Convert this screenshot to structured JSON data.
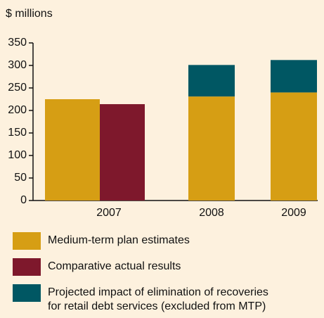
{
  "chart_data": {
    "type": "bar",
    "y_label": "$ millions",
    "categories": [
      "2007",
      "2008",
      "2009"
    ],
    "series": [
      {
        "name": "Medium-term plan estimates",
        "color": "#d69e14",
        "values": [
          225,
          231,
          240
        ]
      },
      {
        "name": "Comparative actual results",
        "color": "#7e182c",
        "values": [
          214,
          null,
          null
        ]
      },
      {
        "name": "Projected impact of elimination of recoveries\nfor retail debt services (excluded from MTP)",
        "color": "#005763",
        "values": [
          null,
          70,
          72
        ]
      }
    ],
    "ylim": [
      0,
      350
    ],
    "yticks": [
      0,
      50,
      100,
      150,
      200,
      250,
      300,
      350
    ],
    "grid": false
  }
}
